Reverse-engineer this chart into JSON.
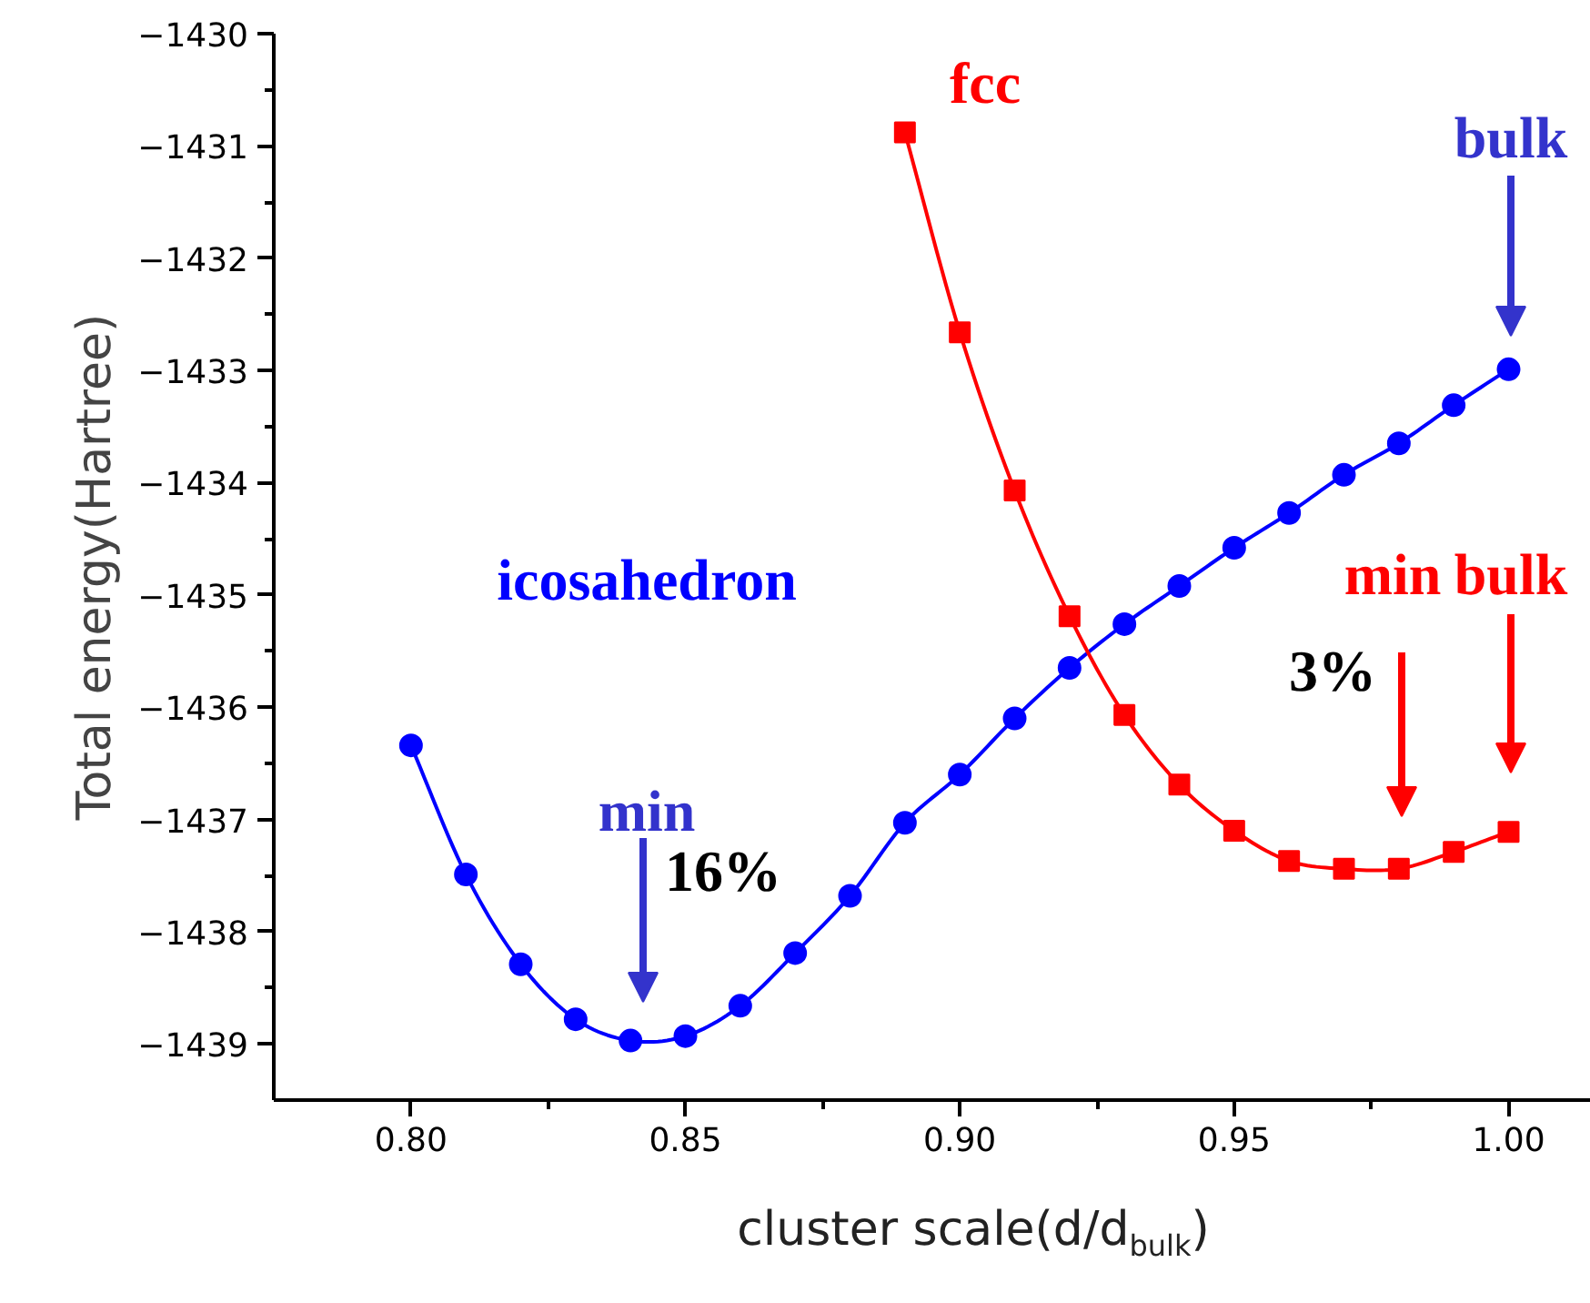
{
  "chart_data": {
    "type": "line",
    "xlabel": "cluster scale(d/d$_{bulk}$)",
    "ylabel": "Total energy(Hartree)",
    "xlim": [
      0.775,
      1.015
    ],
    "ylim": [
      -1439.5,
      -1430
    ],
    "xticks": [
      {
        "value": 0.8,
        "label": "0.80"
      },
      {
        "value": 0.825,
        "label": null
      },
      0.85,
      {
        "value": 0.875,
        "label": null
      },
      {
        "value": 0.9,
        "label": "0.90"
      },
      {
        "value": 0.925,
        "label": null
      },
      0.95,
      {
        "value": 0.975,
        "label": null
      },
      {
        "value": 1.0,
        "label": "1.00"
      }
    ],
    "yticks": [
      {
        "value": -1439,
        "label": "−1439"
      },
      {
        "value": -1438.5,
        "label": null
      },
      {
        "value": -1438,
        "label": "−1438"
      },
      {
        "value": -1437.5,
        "label": null
      },
      {
        "value": -1437,
        "label": "−1437"
      },
      {
        "value": -1436.5,
        "label": null
      },
      {
        "value": -1436,
        "label": "−1436"
      },
      {
        "value": -1435.5,
        "label": null
      },
      {
        "value": -1435,
        "label": "−1435"
      },
      {
        "value": -1434.5,
        "label": null
      },
      {
        "value": -1434,
        "label": "−1434"
      },
      {
        "value": -1433.5,
        "label": null
      },
      {
        "value": -1433,
        "label": "−1433"
      },
      {
        "value": -1432.5,
        "label": null
      },
      {
        "value": -1432,
        "label": "−1432"
      },
      {
        "value": -1431.5,
        "label": null
      },
      {
        "value": -1431,
        "label": "−1431"
      },
      {
        "value": -1430.5,
        "label": null
      },
      {
        "value": -1430,
        "label": "−1430"
      }
    ],
    "grid": false,
    "line_style": "solid",
    "series": [
      {
        "name": "icosahedron",
        "color": "#0000ff",
        "marker": "circle",
        "x": [
          0.8,
          0.81,
          0.82,
          0.83,
          0.84,
          0.85,
          0.86,
          0.87,
          0.88,
          0.89,
          0.9,
          0.91,
          0.92,
          0.93,
          0.94,
          0.95,
          0.96,
          0.97,
          0.98,
          0.99,
          1.0
        ],
        "values": [
          -1436.34,
          -1437.49,
          -1438.29,
          -1438.78,
          -1438.97,
          -1438.93,
          -1438.66,
          -1438.19,
          -1437.68,
          -1437.03,
          -1436.6,
          -1436.1,
          -1435.65,
          -1435.26,
          -1434.92,
          -1434.58,
          -1434.27,
          -1433.93,
          -1433.65,
          -1433.31,
          -1432.99
        ]
      },
      {
        "name": "fcc",
        "color": "#ff0000",
        "marker": "square",
        "x": [
          0.89,
          0.9,
          0.91,
          0.92,
          0.93,
          0.94,
          0.95,
          0.96,
          0.97,
          0.98,
          0.99,
          1.0
        ],
        "values": [
          -1430.88,
          -1432.66,
          -1434.07,
          -1435.19,
          -1436.07,
          -1436.69,
          -1437.1,
          -1437.37,
          -1437.44,
          -1437.44,
          -1437.29,
          -1437.11
        ]
      }
    ],
    "annotations": [
      "min",
      "16%",
      "bulk",
      "min",
      "3%",
      "bulk"
    ]
  }
}
